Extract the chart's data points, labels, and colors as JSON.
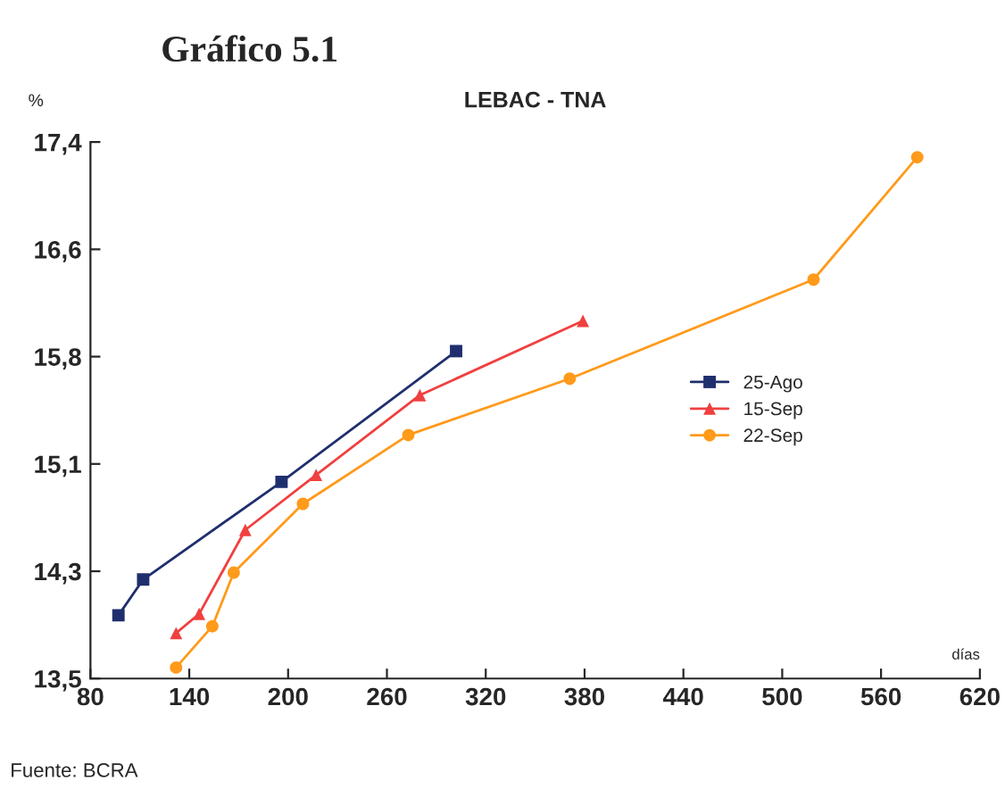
{
  "chart_data": {
    "type": "line",
    "title": "Gráfico 5.1",
    "subtitle": "LEBAC - TNA",
    "xlabel": "días",
    "ylabel": "%",
    "annotations": [
      "Fuente: BCRA"
    ],
    "series": [
      {
        "name": "25-Ago",
        "color": "#1f2f6e",
        "marker": "square",
        "x": [
          97,
          112,
          196,
          302
        ],
        "values": [
          13.96,
          14.22,
          14.93,
          15.88
        ]
      },
      {
        "name": "15-Sep",
        "color": "#f04040",
        "marker": "triangle",
        "x": [
          132,
          146,
          174,
          217,
          280,
          379
        ],
        "values": [
          13.83,
          13.97,
          14.58,
          14.98,
          15.56,
          16.1
        ]
      },
      {
        "name": "22-Sep",
        "color": "#ff9a1a",
        "marker": "circle",
        "x": [
          132,
          154,
          167,
          209,
          273,
          371,
          519,
          582
        ],
        "values": [
          13.58,
          13.88,
          14.27,
          14.77,
          15.27,
          15.68,
          16.4,
          17.29
        ]
      }
    ],
    "xlim": [
      80,
      620
    ],
    "xticks": [
      80,
      140,
      200,
      260,
      320,
      380,
      440,
      500,
      560,
      620
    ],
    "ylim": [
      13.5,
      17.4
    ],
    "yticks": [
      {
        "value": 13.5,
        "label": "13,5"
      },
      {
        "value": 14.28,
        "label": "14,3"
      },
      {
        "value": 15.06,
        "label": "15,1"
      },
      {
        "value": 15.84,
        "label": "15,8"
      },
      {
        "value": 16.62,
        "label": "16,6"
      },
      {
        "value": 17.4,
        "label": "17,4"
      }
    ],
    "grid": false,
    "legend": "right",
    "line_style": "solid"
  }
}
